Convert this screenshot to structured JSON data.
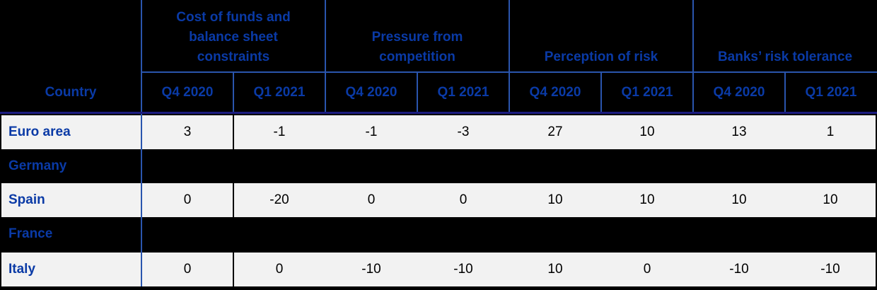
{
  "chart_data": {
    "type": "table",
    "corner_header": "Country",
    "column_groups": [
      {
        "title": "Cost of funds and balance sheet constraints",
        "columns": [
          "Q4 2020",
          "Q1 2021"
        ]
      },
      {
        "title": "Pressure from competition",
        "columns": [
          "Q4 2020",
          "Q1 2021"
        ]
      },
      {
        "title": "Perception of risk",
        "columns": [
          "Q4 2020",
          "Q1 2021"
        ]
      },
      {
        "title": "Banks’ risk tolerance",
        "columns": [
          "Q4 2020",
          "Q1 2021"
        ]
      }
    ],
    "rows": [
      {
        "label": "Euro area",
        "values": [
          "3",
          "-1",
          "-1",
          "-3",
          "27",
          "10",
          "13",
          "1"
        ]
      },
      {
        "label": "Germany",
        "values": [
          "",
          "",
          "",
          "",
          "",
          "",
          "",
          ""
        ]
      },
      {
        "label": "Spain",
        "values": [
          "0",
          "-20",
          "0",
          "0",
          "10",
          "10",
          "10",
          "10"
        ]
      },
      {
        "label": "France",
        "values": [
          "",
          "",
          "",
          "",
          "",
          "",
          "",
          ""
        ]
      },
      {
        "label": "Italy",
        "values": [
          "0",
          "0",
          "-10",
          "-10",
          "10",
          "0",
          "-10",
          "-10"
        ]
      }
    ],
    "layout_hints": {
      "missing_data_rows": [
        "Germany",
        "France"
      ],
      "grid": "blue verticals between column groups; navy underline below header row"
    },
    "colors": {
      "background": "#000000",
      "header_text_blue": "#0a3aa6",
      "grid_line_blue": "#2a55ad",
      "header_underline_navy": "#1b1b80",
      "row_light_background": "#f2f2f2",
      "value_text": "#000000"
    }
  }
}
